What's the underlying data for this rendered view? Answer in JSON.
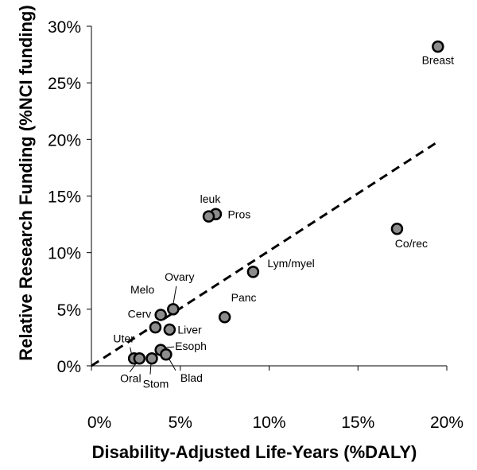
{
  "chart_data": {
    "type": "scatter",
    "xlabel": "Disability-Adjusted Life-Years (%DALY)",
    "ylabel": "Relative Research Funding (%NCI funding)",
    "xlim": [
      0,
      20
    ],
    "ylim": [
      0,
      30
    ],
    "x_ticks": [
      0,
      5,
      10,
      15,
      20
    ],
    "y_ticks": [
      0,
      5,
      10,
      15,
      20,
      25,
      30
    ],
    "x_tick_labels": [
      "0%",
      "5%",
      "10%",
      "15%",
      "20%"
    ],
    "y_tick_labels": [
      "0%",
      "5%",
      "10%",
      "15%",
      "20%",
      "25%",
      "30%"
    ],
    "grid": false,
    "legend": "none",
    "point_color": "#8c8c8c",
    "trendline": {
      "style": "dashed",
      "from": [
        0,
        0
      ],
      "to": [
        19.5,
        19.8
      ]
    },
    "points": [
      {
        "label": "Breast",
        "x": 19.5,
        "y": 28.2
      },
      {
        "label": "Co/rec",
        "x": 17.2,
        "y": 12.1
      },
      {
        "label": "Lym/myel",
        "x": 9.1,
        "y": 8.3
      },
      {
        "label": "Pros",
        "x": 7.0,
        "y": 13.4
      },
      {
        "label": "leuk",
        "x": 6.6,
        "y": 13.2
      },
      {
        "label": "Panc",
        "x": 7.5,
        "y": 4.3
      },
      {
        "label": "Ovary",
        "x": 4.6,
        "y": 5.0
      },
      {
        "label": "Melo",
        "x": 3.9,
        "y": 4.5
      },
      {
        "label": "Cerv",
        "x": 3.6,
        "y": 3.4
      },
      {
        "label": "Liver",
        "x": 4.4,
        "y": 3.2
      },
      {
        "label": "Esoph",
        "x": 3.9,
        "y": 1.4
      },
      {
        "label": "Blad",
        "x": 4.2,
        "y": 1.0
      },
      {
        "label": "Stom",
        "x": 3.4,
        "y": 0.65
      },
      {
        "label": "Uter",
        "x": 2.4,
        "y": 0.65
      },
      {
        "label": "Oral",
        "x": 2.7,
        "y": 0.65
      }
    ]
  }
}
